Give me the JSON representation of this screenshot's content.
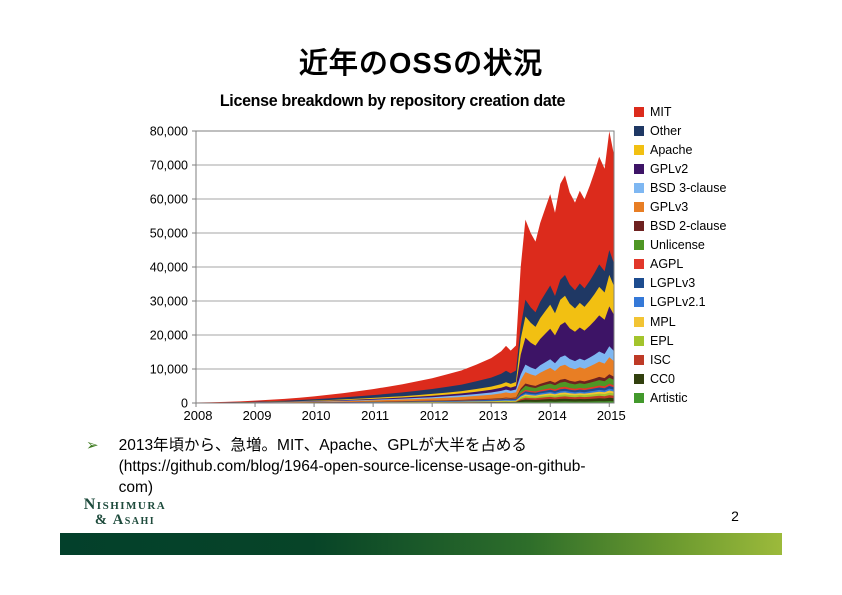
{
  "slide": {
    "title": "近年のOSSの状況",
    "page_number": "2",
    "logo": {
      "line1": "Nishimura",
      "line2": "& Asahi"
    },
    "bullet": {
      "marker": "➢",
      "lines": [
        "2013年頃から、急増。MIT、Apache、GPLが大半を占める",
        "(https://github.com/blog/1964-open-source-license-usage-on-github-",
        "com)"
      ]
    }
  },
  "chart_data": {
    "type": "area",
    "stacked": true,
    "title": "License breakdown by repository creation date",
    "xlabel": "",
    "ylabel": "",
    "grid": "horizontal",
    "legend_position": "right",
    "xlim": [
      2008,
      2015.08
    ],
    "ylim": [
      0,
      80000
    ],
    "x_ticks": [
      "2008",
      "2009",
      "2010",
      "2011",
      "2012",
      "2013",
      "2014",
      "2015"
    ],
    "y_ticks": [
      "0",
      "10,000",
      "20,000",
      "30,000",
      "40,000",
      "50,000",
      "60,000",
      "70,000",
      "80,000"
    ],
    "x": [
      2008.0,
      2008.25,
      2008.5,
      2008.75,
      2009.0,
      2009.25,
      2009.5,
      2009.75,
      2010.0,
      2010.25,
      2010.5,
      2010.75,
      2011.0,
      2011.25,
      2011.5,
      2011.75,
      2012.0,
      2012.25,
      2012.5,
      2012.75,
      2013.0,
      2013.17,
      2013.25,
      2013.33,
      2013.42,
      2013.5,
      2013.58,
      2013.67,
      2013.75,
      2013.83,
      2013.92,
      2014.0,
      2014.08,
      2014.17,
      2014.25,
      2014.33,
      2014.42,
      2014.5,
      2014.58,
      2014.67,
      2014.75,
      2014.83,
      2014.92,
      2015.0,
      2015.08
    ],
    "series": [
      {
        "name": "MIT",
        "color": "#DC2B1C",
        "values": [
          65,
          96,
          139,
          209,
          305,
          413,
          522,
          674,
          848,
          1044,
          1262,
          1522,
          1784,
          2088,
          2392,
          2784,
          3176,
          3654,
          4176,
          4916,
          5742,
          6612,
          7308,
          6699,
          7352,
          17480,
          23600,
          21850,
          20760,
          23160,
          25130,
          26880,
          24470,
          28190,
          29280,
          27090,
          25780,
          27310,
          26220,
          27970,
          29720,
          31680,
          30150,
          34960,
          31900
        ]
      },
      {
        "name": "Other",
        "color": "#1F3864",
        "values": [
          30,
          44,
          64,
          96,
          140,
          190,
          240,
          310,
          390,
          480,
          580,
          700,
          820,
          960,
          1100,
          1280,
          1460,
          1680,
          1920,
          2260,
          2640,
          3040,
          3360,
          3080,
          3380,
          3640,
          4910,
          4550,
          4320,
          4820,
          5230,
          5600,
          5100,
          5870,
          6100,
          5640,
          5370,
          5690,
          5460,
          5820,
          6190,
          6600,
          6280,
          7280,
          6640
        ]
      },
      {
        "name": "Apache",
        "color": "#F2C012",
        "values": [
          11,
          15,
          22,
          34,
          49,
          67,
          84,
          109,
          137,
          168,
          203,
          245,
          287,
          336,
          385,
          448,
          511,
          588,
          672,
          791,
          924,
          1064,
          1176,
          1078,
          1183,
          4640,
          6260,
          5800,
          5510,
          6150,
          6670,
          7130,
          6500,
          7480,
          7770,
          7190,
          6840,
          7250,
          6960,
          7420,
          7890,
          8410,
          8000,
          9280,
          8470
        ]
      },
      {
        "name": "GPLv2",
        "color": "#3D1466",
        "values": [
          9,
          13,
          19,
          29,
          42,
          57,
          72,
          93,
          117,
          144,
          174,
          210,
          246,
          288,
          330,
          384,
          438,
          504,
          576,
          678,
          792,
          912,
          1008,
          924,
          1014,
          5840,
          7880,
          7300,
          6940,
          7740,
          8400,
          8980,
          8180,
          9420,
          9780,
          9050,
          8610,
          9130,
          8760,
          9340,
          9930,
          10590,
          10070,
          11680,
          10660
        ]
      },
      {
        "name": "BSD 3-clause",
        "color": "#7EB7F2",
        "values": [
          8,
          11,
          16,
          24,
          35,
          48,
          60,
          78,
          98,
          120,
          145,
          175,
          205,
          240,
          275,
          320,
          365,
          420,
          480,
          565,
          660,
          760,
          840,
          770,
          845,
          1640,
          2210,
          2050,
          1950,
          2170,
          2360,
          2520,
          2300,
          2640,
          2750,
          2540,
          2420,
          2560,
          2460,
          2620,
          2790,
          2970,
          2830,
          3280,
          2990
        ]
      },
      {
        "name": "GPLv3",
        "color": "#E87E24",
        "values": [
          14,
          20,
          29,
          43,
          63,
          86,
          108,
          140,
          176,
          216,
          261,
          315,
          369,
          432,
          495,
          576,
          657,
          756,
          864,
          1017,
          1188,
          1368,
          1512,
          1386,
          1521,
          2480,
          3350,
          3100,
          2950,
          3290,
          3570,
          3810,
          3470,
          4000,
          4150,
          3840,
          3660,
          3880,
          3720,
          3970,
          4220,
          4500,
          4280,
          4960,
          4530
        ]
      },
      {
        "name": "BSD 2-clause",
        "color": "#6E2120",
        "values": [
          2,
          2,
          3,
          5,
          7,
          10,
          12,
          16,
          20,
          24,
          29,
          35,
          41,
          48,
          55,
          64,
          73,
          84,
          96,
          113,
          132,
          152,
          168,
          154,
          169,
          520,
          700,
          650,
          620,
          690,
          750,
          800,
          730,
          840,
          870,
          810,
          770,
          810,
          780,
          830,
          880,
          940,
          900,
          1040,
          950
        ]
      },
      {
        "name": "Unlicense",
        "color": "#4E9624",
        "values": [
          1,
          1,
          2,
          2,
          4,
          5,
          6,
          8,
          10,
          12,
          15,
          18,
          21,
          24,
          28,
          32,
          37,
          42,
          48,
          57,
          66,
          76,
          84,
          77,
          85,
          880,
          1190,
          1100,
          1050,
          1170,
          1270,
          1350,
          1230,
          1420,
          1470,
          1360,
          1300,
          1380,
          1320,
          1410,
          1500,
          1600,
          1520,
          1760,
          1610
        ]
      },
      {
        "name": "AGPL",
        "color": "#E2372A",
        "values": [
          2,
          2,
          3,
          5,
          7,
          10,
          12,
          16,
          20,
          24,
          29,
          35,
          41,
          48,
          55,
          64,
          73,
          84,
          96,
          113,
          132,
          152,
          168,
          154,
          169,
          320,
          430,
          400,
          380,
          420,
          460,
          490,
          450,
          520,
          540,
          500,
          470,
          500,
          480,
          510,
          540,
          580,
          550,
          640,
          580
        ]
      },
      {
        "name": "LGPLv3",
        "color": "#1D4C8F",
        "values": [
          2,
          3,
          5,
          7,
          11,
          14,
          18,
          23,
          29,
          36,
          44,
          53,
          62,
          72,
          83,
          96,
          110,
          126,
          144,
          170,
          198,
          228,
          252,
          231,
          254,
          400,
          540,
          500,
          475,
          530,
          575,
          615,
          560,
          645,
          670,
          620,
          590,
          625,
          600,
          640,
          680,
          725,
          690,
          800,
          730
        ]
      },
      {
        "name": "LGPLv2.1",
        "color": "#3579D8",
        "values": [
          2,
          3,
          5,
          7,
          11,
          14,
          18,
          23,
          29,
          36,
          44,
          53,
          62,
          72,
          83,
          96,
          110,
          126,
          144,
          170,
          198,
          228,
          252,
          231,
          254,
          280,
          380,
          350,
          330,
          370,
          400,
          430,
          390,
          450,
          470,
          430,
          410,
          440,
          420,
          450,
          480,
          510,
          480,
          560,
          510
        ]
      },
      {
        "name": "MPL",
        "color": "#F2C434",
        "values": [
          2,
          2,
          3,
          5,
          7,
          10,
          12,
          16,
          20,
          24,
          29,
          35,
          41,
          48,
          55,
          64,
          73,
          84,
          96,
          113,
          132,
          152,
          168,
          154,
          169,
          320,
          430,
          400,
          380,
          420,
          460,
          490,
          450,
          520,
          540,
          500,
          470,
          500,
          480,
          510,
          540,
          580,
          550,
          640,
          580
        ]
      },
      {
        "name": "EPL",
        "color": "#A3C42C",
        "values": [
          2,
          2,
          3,
          5,
          7,
          10,
          12,
          16,
          20,
          24,
          29,
          35,
          41,
          48,
          55,
          64,
          73,
          84,
          96,
          113,
          132,
          152,
          168,
          154,
          169,
          360,
          490,
          450,
          430,
          480,
          520,
          550,
          500,
          580,
          600,
          560,
          530,
          560,
          540,
          580,
          610,
          650,
          620,
          720,
          660
        ]
      },
      {
        "name": "ISC",
        "color": "#BE3A26",
        "values": [
          1,
          1,
          2,
          2,
          4,
          5,
          6,
          8,
          10,
          12,
          15,
          18,
          21,
          24,
          28,
          32,
          37,
          42,
          48,
          57,
          66,
          76,
          84,
          77,
          85,
          400,
          540,
          500,
          475,
          530,
          575,
          615,
          560,
          645,
          670,
          620,
          590,
          625,
          600,
          640,
          680,
          725,
          690,
          800,
          730
        ]
      },
      {
        "name": "CC0",
        "color": "#32400E",
        "values": [
          0,
          1,
          1,
          1,
          2,
          3,
          4,
          5,
          6,
          7,
          9,
          11,
          12,
          14,
          17,
          19,
          22,
          25,
          29,
          34,
          40,
          46,
          50,
          46,
          51,
          480,
          650,
          600,
          570,
          640,
          690,
          740,
          670,
          770,
          800,
          740,
          710,
          750,
          720,
          770,
          820,
          870,
          830,
          960,
          880
        ]
      },
      {
        "name": "Artistic",
        "color": "#43992C",
        "values": [
          2,
          3,
          4,
          6,
          8,
          11,
          14,
          19,
          23,
          29,
          35,
          42,
          49,
          58,
          66,
          77,
          88,
          101,
          115,
          136,
          158,
          182,
          202,
          185,
          203,
          280,
          380,
          350,
          330,
          370,
          400,
          430,
          390,
          450,
          470,
          430,
          410,
          440,
          420,
          450,
          480,
          510,
          480,
          560,
          510
        ]
      }
    ]
  }
}
